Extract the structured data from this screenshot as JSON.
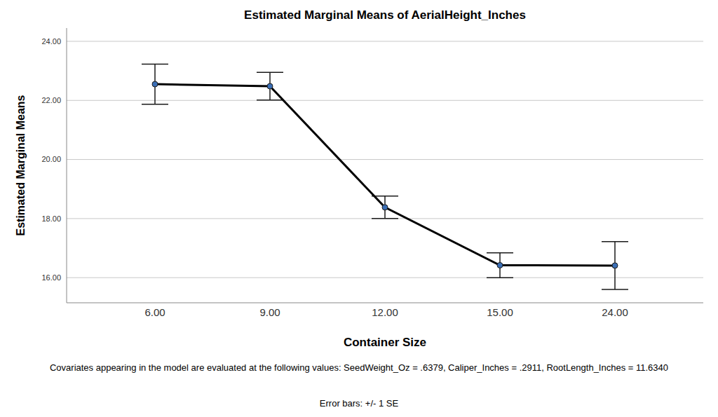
{
  "chart_data": {
    "type": "line",
    "title": "Estimated Marginal Means of AerialHeight_Inches",
    "x_label": "Container Size",
    "y_label": "Estimated Marginal Means",
    "categories": [
      "6.00",
      "9.00",
      "12.00",
      "15.00",
      "24.00"
    ],
    "values": [
      22.55,
      22.48,
      18.38,
      16.42,
      16.41
    ],
    "errors": [
      0.68,
      0.47,
      0.38,
      0.42,
      0.81
    ],
    "color": "#000000",
    "marker": "circle",
    "line_style": "solid",
    "ylim": [
      15.15,
      24.45
    ],
    "yticks": [
      {
        "value": 16,
        "label": "16.00"
      },
      {
        "value": 18,
        "label": "18.00"
      },
      {
        "value": 20,
        "label": "20.00"
      },
      {
        "value": 22,
        "label": "22.00"
      },
      {
        "value": 24,
        "label": "24.00"
      }
    ],
    "grid": true,
    "notes": [
      "Covariates appearing in the model are evaluated at the following values: SeedWeight_Oz = .6379, Caliper_Inches = .2911, RootLength_Inches = 11.6340",
      "Error bars: +/- 1 SE"
    ]
  }
}
